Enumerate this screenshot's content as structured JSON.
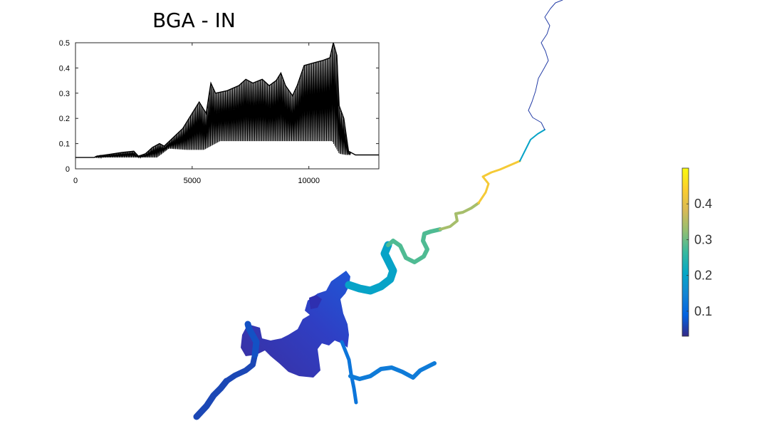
{
  "chart_data": {
    "type": "line",
    "title": "BGA - IN",
    "xlabel": "",
    "ylabel": "",
    "xlim": [
      0,
      13000
    ],
    "ylim": [
      0,
      0.5
    ],
    "x_ticks": [
      "0",
      "5000",
      "10000"
    ],
    "x_tick_values": [
      0,
      5000,
      10000
    ],
    "y_ticks": [
      "0",
      "0.1",
      "0.2",
      "0.3",
      "0.4",
      "0.5"
    ],
    "y_tick_values": [
      0,
      0.1,
      0.2,
      0.3,
      0.4,
      0.5
    ],
    "line_color": "#000000",
    "baseline": 0.045,
    "envelope": [
      [
        0,
        0.045
      ],
      [
        800,
        0.045
      ],
      [
        900,
        0.05
      ],
      [
        1500,
        0.058
      ],
      [
        2000,
        0.065
      ],
      [
        2500,
        0.07
      ],
      [
        2700,
        0.05
      ],
      [
        3000,
        0.06
      ],
      [
        3300,
        0.085
      ],
      [
        3600,
        0.1
      ],
      [
        3800,
        0.09
      ],
      [
        4200,
        0.125
      ],
      [
        4600,
        0.16
      ],
      [
        5000,
        0.22
      ],
      [
        5300,
        0.265
      ],
      [
        5600,
        0.22
      ],
      [
        5800,
        0.34
      ],
      [
        6000,
        0.3
      ],
      [
        6500,
        0.31
      ],
      [
        7000,
        0.33
      ],
      [
        7300,
        0.355
      ],
      [
        7600,
        0.34
      ],
      [
        8000,
        0.355
      ],
      [
        8300,
        0.33
      ],
      [
        8600,
        0.35
      ],
      [
        8800,
        0.38
      ],
      [
        9000,
        0.33
      ],
      [
        9300,
        0.29
      ],
      [
        9500,
        0.33
      ],
      [
        9800,
        0.41
      ],
      [
        10200,
        0.42
      ],
      [
        10600,
        0.43
      ],
      [
        10900,
        0.44
      ],
      [
        11050,
        0.5
      ],
      [
        11200,
        0.45
      ],
      [
        11300,
        0.25
      ],
      [
        11500,
        0.2
      ],
      [
        11700,
        0.07
      ],
      [
        12000,
        0.055
      ],
      [
        13000,
        0.055
      ]
    ],
    "floor": [
      [
        0,
        0.045
      ],
      [
        3500,
        0.045
      ],
      [
        4000,
        0.08
      ],
      [
        4800,
        0.075
      ],
      [
        5500,
        0.075
      ],
      [
        5800,
        0.09
      ],
      [
        6200,
        0.11
      ],
      [
        11000,
        0.11
      ],
      [
        11300,
        0.06
      ],
      [
        11600,
        0.055
      ],
      [
        13000,
        0.055
      ]
    ]
  },
  "map": {
    "river_segments": [
      {
        "value": 0.06,
        "path": [
          [
            276,
            585
          ],
          [
            290,
            570
          ],
          [
            300,
            555
          ],
          [
            310,
            545
          ],
          [
            318,
            535
          ]
        ]
      },
      {
        "value": 0.06,
        "path": [
          [
            318,
            535
          ],
          [
            330,
            527
          ],
          [
            345,
            520
          ],
          [
            355,
            512
          ],
          [
            358,
            498
          ]
        ]
      },
      {
        "value": 0.07,
        "path": [
          [
            358,
            498
          ],
          [
            360,
            480
          ],
          [
            350,
            462
          ],
          [
            348,
            455
          ]
        ]
      },
      {
        "value": 0.12,
        "path": [
          [
            480,
            480
          ],
          [
            490,
            505
          ],
          [
            493,
            525
          ],
          [
            497,
            545
          ],
          [
            500,
            565
          ]
        ]
      },
      {
        "value": 0.13,
        "path": [
          [
            492,
            528
          ],
          [
            505,
            532
          ],
          [
            520,
            528
          ],
          [
            535,
            518
          ],
          [
            550,
            516
          ],
          [
            565,
            522
          ],
          [
            580,
            530
          ],
          [
            590,
            520
          ],
          [
            600,
            515
          ],
          [
            610,
            510
          ]
        ]
      },
      {
        "value": 0.2,
        "path": [
          [
            490,
            400
          ],
          [
            505,
            405
          ],
          [
            520,
            408
          ],
          [
            535,
            402
          ],
          [
            548,
            392
          ],
          [
            552,
            380
          ],
          [
            546,
            368
          ],
          [
            540,
            356
          ],
          [
            545,
            344
          ]
        ]
      },
      {
        "value": 0.28,
        "path": [
          [
            545,
            344
          ],
          [
            552,
            338
          ],
          [
            562,
            345
          ],
          [
            570,
            362
          ],
          [
            582,
            368
          ],
          [
            595,
            360
          ],
          [
            600,
            350
          ],
          [
            594,
            338
          ],
          [
            596,
            328
          ],
          [
            605,
            325
          ],
          [
            618,
            322
          ]
        ]
      },
      {
        "value": 0.34,
        "path": [
          [
            618,
            322
          ],
          [
            632,
            318
          ],
          [
            642,
            310
          ],
          [
            640,
            300
          ],
          [
            650,
            298
          ],
          [
            662,
            292
          ],
          [
            672,
            285
          ]
        ]
      },
      {
        "value": 0.43,
        "path": [
          [
            672,
            285
          ],
          [
            682,
            270
          ],
          [
            686,
            258
          ],
          [
            678,
            248
          ],
          [
            690,
            242
          ],
          [
            702,
            238
          ],
          [
            716,
            232
          ],
          [
            730,
            226
          ]
        ]
      },
      {
        "value": 0.2,
        "path": [
          [
            730,
            226
          ],
          [
            737,
            212
          ],
          [
            745,
            196
          ],
          [
            755,
            188
          ],
          [
            765,
            182
          ]
        ]
      },
      {
        "value": 0.05,
        "path": [
          [
            765,
            182
          ],
          [
            760,
            172
          ],
          [
            748,
            165
          ],
          [
            742,
            155
          ],
          [
            747,
            143
          ],
          [
            752,
            128
          ],
          [
            756,
            110
          ],
          [
            764,
            96
          ],
          [
            770,
            85
          ],
          [
            766,
            72
          ],
          [
            760,
            60
          ],
          [
            768,
            48
          ],
          [
            772,
            36
          ],
          [
            765,
            24
          ],
          [
            773,
            12
          ],
          [
            780,
            4
          ],
          [
            790,
            0
          ]
        ]
      }
    ],
    "lake_value": 0.06
  },
  "colorbar": {
    "ticks": [
      "0.1",
      "0.2",
      "0.3",
      "0.4"
    ],
    "tick_values": [
      0.1,
      0.2,
      0.3,
      0.4
    ],
    "min": 0.03,
    "max": 0.5,
    "colors": [
      "#352a87",
      "#0363e1",
      "#1485d4",
      "#06a7c6",
      "#38b99e",
      "#92bf73",
      "#d9ba56",
      "#fcce2e",
      "#f9fb0e"
    ]
  }
}
